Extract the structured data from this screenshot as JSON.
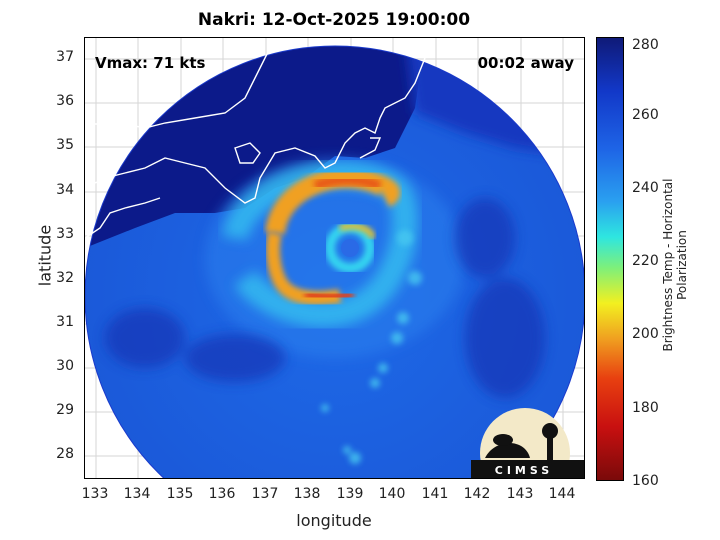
{
  "title": "Nakri: 12-Oct-2025 19:00:00",
  "vmax_label": "Vmax: 71 kts",
  "time_label": "00:02 away",
  "axes": {
    "xlabel": "longitude",
    "ylabel": "latitude",
    "xticks": [
      "133",
      "134",
      "135",
      "136",
      "137",
      "138",
      "139",
      "140",
      "141",
      "142",
      "143",
      "144"
    ],
    "yticks": [
      "37",
      "36",
      "35",
      "34",
      "33",
      "32",
      "31",
      "30",
      "29",
      "28"
    ]
  },
  "colorbar": {
    "label": "Brightness Temp - Horizontal Polarization",
    "ticks": [
      "280",
      "260",
      "240",
      "220",
      "200",
      "180",
      "160"
    ],
    "range": [
      160,
      280
    ]
  },
  "logo": {
    "text": "CIMSS"
  }
}
